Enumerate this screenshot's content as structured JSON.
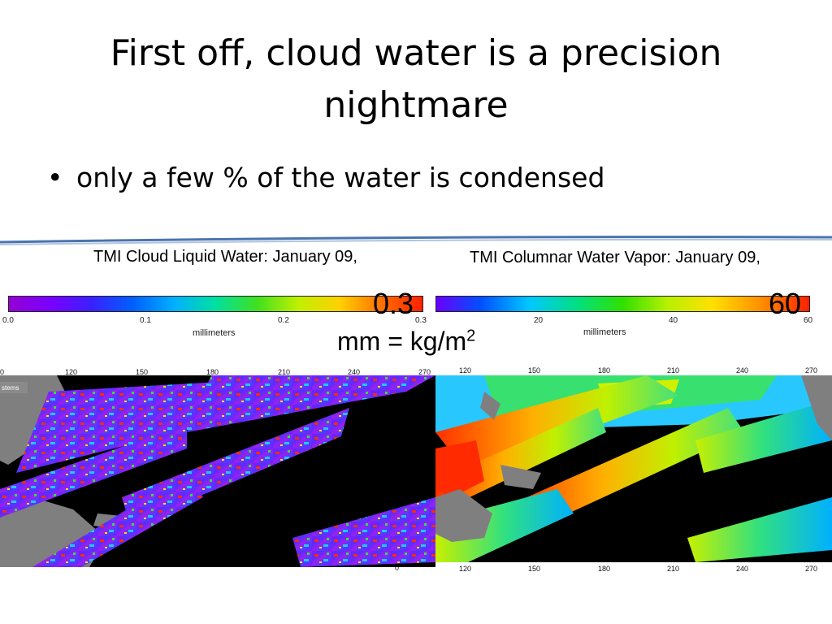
{
  "slide": {
    "title": "First off, cloud water is a precision nightmare",
    "bullets": [
      "only a few % of the water is condensed"
    ],
    "unit_note": {
      "base": "mm = kg/m",
      "exponent": "2"
    }
  },
  "left_panel": {
    "title": "TMI Cloud Liquid Water:  January 09,",
    "colorbar_ticks": [
      "0.0",
      "0.1",
      "0.2",
      "0.3"
    ],
    "colorbar_unit": "millimeters",
    "overlay_max": "0.3",
    "lon_ticks_top": [
      "0",
      "120",
      "150",
      "180",
      "210",
      "240",
      "270"
    ],
    "lon_ticks_bottom": [
      "0"
    ],
    "map_label": "stems"
  },
  "right_panel": {
    "title": "TMI Columnar Water Vapor:  January 09,",
    "colorbar_ticks": [
      "20",
      "40",
      "60"
    ],
    "colorbar_unit": "millimeters",
    "overlay_max": "60",
    "lon_ticks_top": [
      "120",
      "150",
      "180",
      "210",
      "240",
      "270"
    ],
    "lon_ticks_bottom": [
      "120",
      "150",
      "180",
      "210",
      "240",
      "270"
    ]
  },
  "colors": {
    "divider_blue": "#4a74b0",
    "overlay_text": "#000000",
    "land": "#808080",
    "ocean_no_data": "#000000"
  }
}
